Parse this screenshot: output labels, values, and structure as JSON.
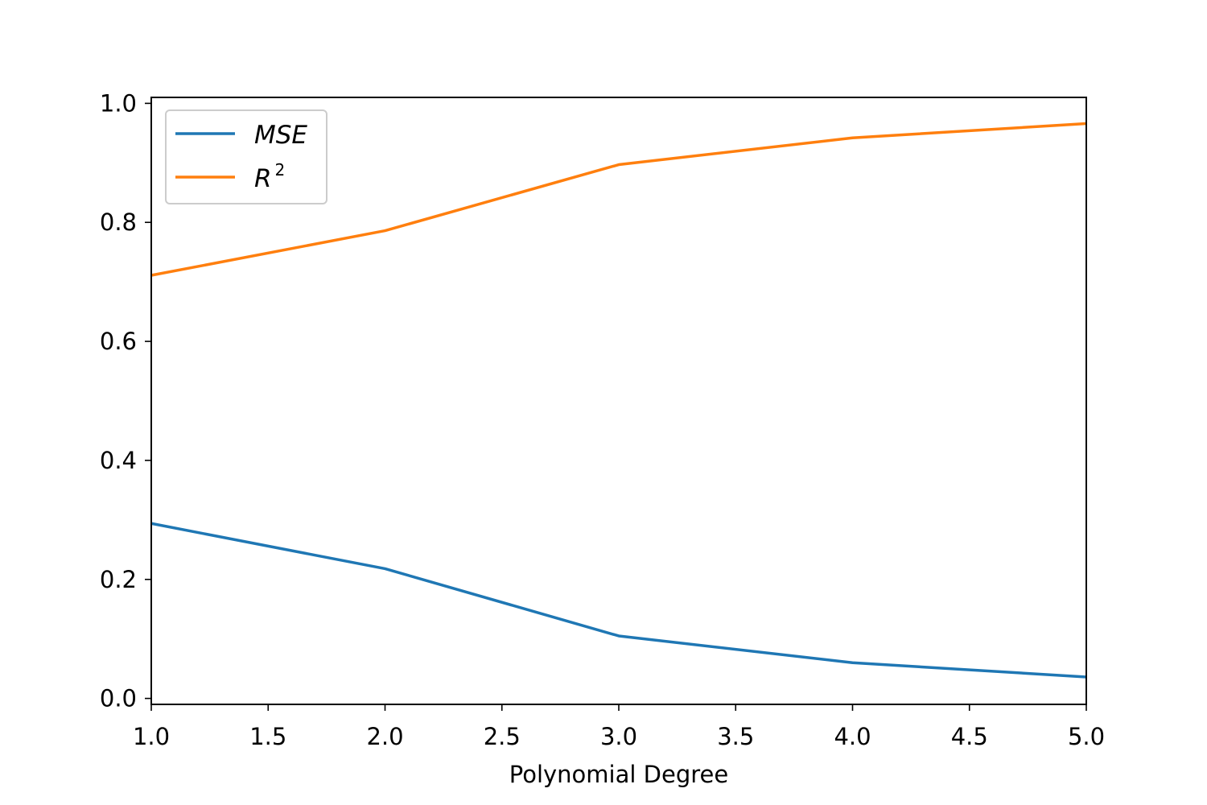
{
  "chart_data": {
    "type": "line",
    "title": "",
    "xlabel": "Polynomial Degree",
    "ylabel": "",
    "x": [
      1,
      2,
      3,
      4,
      5
    ],
    "xlim": [
      1.0,
      5.0
    ],
    "ylim": [
      -0.01,
      1.01
    ],
    "xticks": [
      "1.0",
      "1.5",
      "2.0",
      "2.5",
      "3.0",
      "3.5",
      "4.0",
      "4.5",
      "5.0"
    ],
    "yticks": [
      "0.0",
      "0.2",
      "0.4",
      "0.6",
      "0.8",
      "1.0"
    ],
    "grid": false,
    "legend_position": "top-left",
    "series": [
      {
        "name": "MSE",
        "color": "#1f77b4",
        "values": [
          0.294,
          0.218,
          0.105,
          0.06,
          0.036
        ]
      },
      {
        "name": "R",
        "name_superscript": "2",
        "color": "#ff7f0e",
        "values": [
          0.711,
          0.786,
          0.897,
          0.942,
          0.966
        ]
      }
    ]
  }
}
